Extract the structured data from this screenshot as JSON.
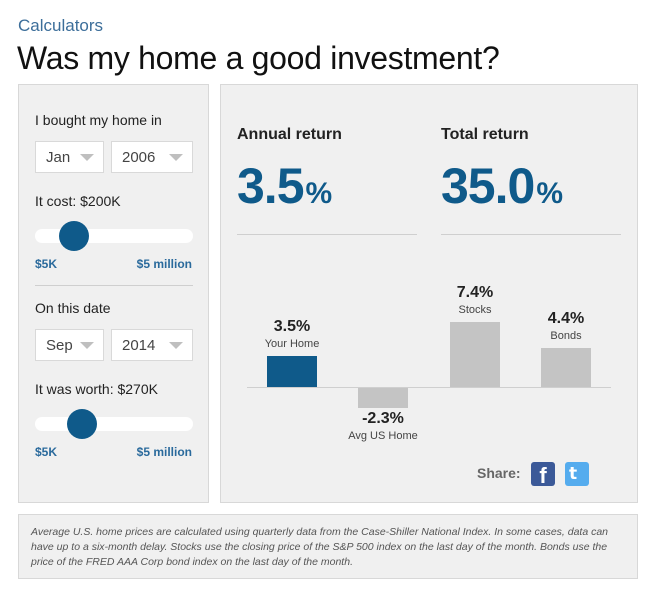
{
  "header": {
    "kicker": "Calculators",
    "title": "Was my home a good investment?"
  },
  "inputs": {
    "bought_label": "I bought my home in",
    "bought_month": "Jan",
    "bought_year": "2006",
    "cost_label": "It cost: $200K",
    "cost_slider": {
      "min_label": "$5K",
      "max_label": "$5 million"
    },
    "date_label": "On this date",
    "sold_month": "Sep",
    "sold_year": "2014",
    "worth_label": "It was worth: $270K",
    "worth_slider": {
      "min_label": "$5K",
      "max_label": "$5 million"
    }
  },
  "results": {
    "annual_title": "Annual return",
    "annual_value": "3.5",
    "total_title": "Total return",
    "total_value": "35.0",
    "pct_symbol": "%"
  },
  "chart_data": {
    "type": "bar",
    "categories": [
      "Your Home",
      "Avg US Home",
      "Stocks",
      "Bonds"
    ],
    "values": [
      3.5,
      -2.3,
      7.4,
      4.4
    ],
    "labels": [
      "3.5%",
      "-2.3%",
      "7.4%",
      "4.4%"
    ],
    "colors": [
      "#0f5a8a",
      "#c4c4c4",
      "#c4c4c4",
      "#c4c4c4"
    ]
  },
  "share": {
    "label": "Share:",
    "icons": [
      "facebook-icon",
      "twitter-icon"
    ],
    "facebook_glyph": "f",
    "twitter_glyph": "t"
  },
  "footnote": "Average U.S. home prices are calculated using quarterly data from the Case-Shiller National Index. In some cases, data can have up to a six-month delay. Stocks use the closing price of the S&P 500 index on the last day of the month. Bonds use the price of the FRED AAA Corp bond index on the last day of the month."
}
